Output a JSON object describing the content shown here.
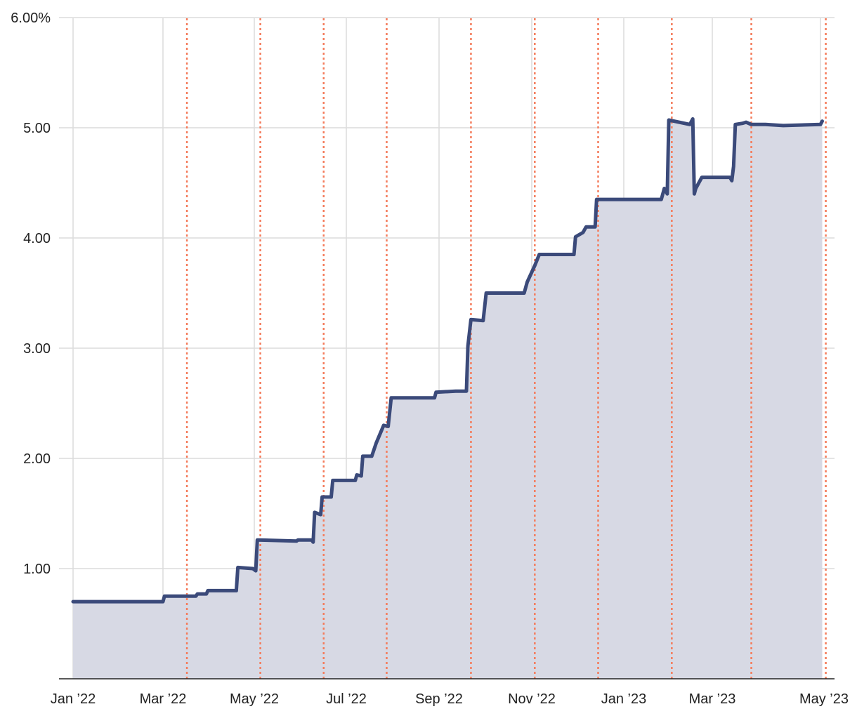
{
  "colors": {
    "line": "#3b4a7a",
    "area": "#d7d9e4",
    "event": "#f47c5c",
    "grid": "#dcdcdc"
  },
  "chart_data": {
    "type": "area",
    "title": "",
    "xlabel": "",
    "ylabel": "",
    "y_unit": "%",
    "ylim": [
      0,
      6
    ],
    "xlim": [
      "2022-01-01",
      "2023-05-01"
    ],
    "grid": true,
    "y_ticks": [
      {
        "value": 1,
        "label": "1.00"
      },
      {
        "value": 2,
        "label": "2.00"
      },
      {
        "value": 3,
        "label": "3.00"
      },
      {
        "value": 4,
        "label": "4.00"
      },
      {
        "value": 5,
        "label": "5.00"
      },
      {
        "value": 6,
        "label": "6.00%"
      }
    ],
    "x_ticks": [
      {
        "value": "2022-01-01",
        "label": "Jan ’22"
      },
      {
        "value": "2022-03-01",
        "label": "Mar ’22"
      },
      {
        "value": "2022-05-01",
        "label": "May ’22"
      },
      {
        "value": "2022-07-01",
        "label": "Jul ’22"
      },
      {
        "value": "2022-09-01",
        "label": "Sep ’22"
      },
      {
        "value": "2022-11-01",
        "label": "Nov ’22"
      },
      {
        "value": "2023-01-01",
        "label": "Jan ’23"
      },
      {
        "value": "2023-03-01",
        "label": "Mar ’23"
      },
      {
        "value": "2023-05-01",
        "label": "May ’23"
      }
    ],
    "event_dates": [
      "2022-03-17",
      "2022-05-05",
      "2022-06-16",
      "2022-07-28",
      "2022-09-22",
      "2022-11-03",
      "2022-12-15",
      "2023-02-02",
      "2023-03-23",
      "2023-05-04"
    ],
    "series": [
      {
        "points": [
          [
            "2022-01-01",
            0.7
          ],
          [
            "2022-03-01",
            0.7
          ],
          [
            "2022-03-02",
            0.75
          ],
          [
            "2022-03-23",
            0.75
          ],
          [
            "2022-03-24",
            0.77
          ],
          [
            "2022-03-30",
            0.77
          ],
          [
            "2022-03-31",
            0.8
          ],
          [
            "2022-04-19",
            0.8
          ],
          [
            "2022-04-20",
            1.01
          ],
          [
            "2022-04-30",
            1.0
          ],
          [
            "2022-05-02",
            0.98
          ],
          [
            "2022-05-03",
            1.26
          ],
          [
            "2022-05-29",
            1.25
          ],
          [
            "2022-05-30",
            1.26
          ],
          [
            "2022-06-08",
            1.26
          ],
          [
            "2022-06-09",
            1.24
          ],
          [
            "2022-06-10",
            1.51
          ],
          [
            "2022-06-14",
            1.49
          ],
          [
            "2022-06-15",
            1.65
          ],
          [
            "2022-06-21",
            1.65
          ],
          [
            "2022-06-22",
            1.8
          ],
          [
            "2022-07-07",
            1.8
          ],
          [
            "2022-07-08",
            1.85
          ],
          [
            "2022-07-11",
            1.84
          ],
          [
            "2022-07-12",
            2.02
          ],
          [
            "2022-07-18",
            2.02
          ],
          [
            "2022-07-21",
            2.14
          ],
          [
            "2022-07-26",
            2.3
          ],
          [
            "2022-07-29",
            2.29
          ],
          [
            "2022-07-31",
            2.55
          ],
          [
            "2022-08-29",
            2.55
          ],
          [
            "2022-08-30",
            2.6
          ],
          [
            "2022-09-12",
            2.61
          ],
          [
            "2022-09-19",
            2.61
          ],
          [
            "2022-09-20",
            3.02
          ],
          [
            "2022-09-22",
            3.26
          ],
          [
            "2022-09-30",
            3.25
          ],
          [
            "2022-10-02",
            3.5
          ],
          [
            "2022-10-27",
            3.5
          ],
          [
            "2022-10-29",
            3.6
          ],
          [
            "2022-11-03",
            3.75
          ],
          [
            "2022-11-06",
            3.85
          ],
          [
            "2022-11-29",
            3.85
          ],
          [
            "2022-11-30",
            4.01
          ],
          [
            "2022-12-05",
            4.05
          ],
          [
            "2022-12-07",
            4.1
          ],
          [
            "2022-12-13",
            4.1
          ],
          [
            "2022-12-14",
            4.35
          ],
          [
            "2023-01-26",
            4.35
          ],
          [
            "2023-01-28",
            4.45
          ],
          [
            "2023-01-30",
            4.4
          ],
          [
            "2023-01-31",
            5.07
          ],
          [
            "2023-02-14",
            5.03
          ],
          [
            "2023-02-16",
            5.08
          ],
          [
            "2023-02-17",
            4.4
          ],
          [
            "2023-02-18",
            4.45
          ],
          [
            "2023-02-22",
            4.55
          ],
          [
            "2023-03-11",
            4.55
          ],
          [
            "2023-03-12",
            4.52
          ],
          [
            "2023-03-13",
            4.65
          ],
          [
            "2023-03-14",
            5.03
          ],
          [
            "2023-03-18",
            5.04
          ],
          [
            "2023-03-20",
            5.05
          ],
          [
            "2023-03-23",
            5.03
          ],
          [
            "2023-03-31",
            5.03
          ],
          [
            "2023-04-10",
            5.02
          ],
          [
            "2023-05-01",
            5.03
          ],
          [
            "2023-05-02",
            5.06
          ]
        ]
      }
    ]
  }
}
